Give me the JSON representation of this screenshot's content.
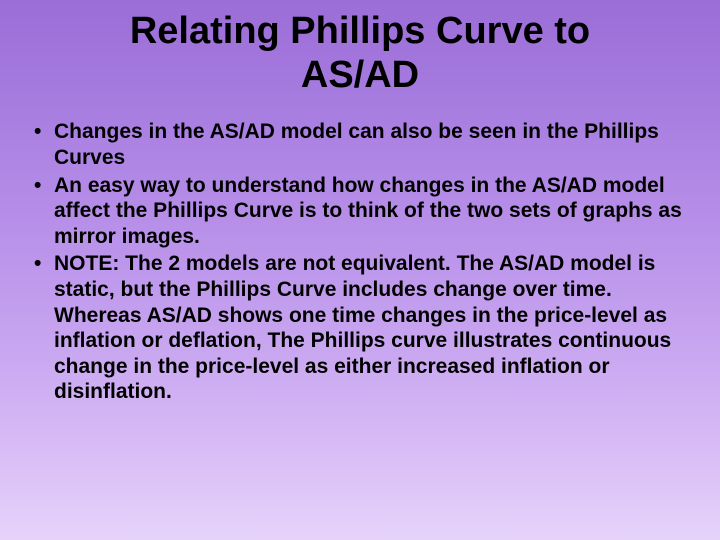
{
  "title": "Relating Phillips Curve to AS/AD",
  "bullets": [
    "Changes in the AS/AD model can also be seen in the Phillips Curves",
    "An easy way to understand how changes in the AS/AD model affect the Phillips Curve is to think of the two sets of graphs as mirror images.",
    "NOTE: The 2 models are not equivalent. The AS/AD model is static, but the Phillips Curve includes change over time. Whereas AS/AD shows one time changes in the price-level as inflation or deflation, The Phillips curve illustrates continuous change in the price-level as either increased inflation or disinflation."
  ],
  "style": {
    "background_gradient_top": "#9b6dd7",
    "background_gradient_bottom": "#e6d3fa",
    "text_color": "#000000",
    "title_fontsize": 38,
    "bullet_fontsize": 21,
    "font_family": "Arial"
  }
}
